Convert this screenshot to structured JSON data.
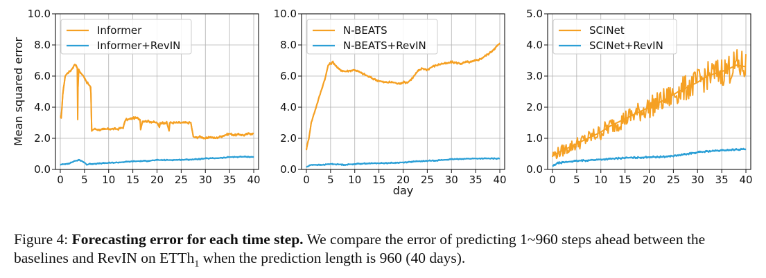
{
  "chart_data": [
    {
      "type": "line",
      "title": "",
      "xlabel": "",
      "ylabel": "Mean squared error",
      "xlim": [
        -1,
        41
      ],
      "ylim": [
        0,
        10
      ],
      "x_ticks": [
        0,
        5,
        10,
        15,
        20,
        25,
        30,
        35,
        40
      ],
      "y_ticks": [
        "0.0",
        "2.0",
        "4.0",
        "6.0",
        "8.0",
        "10.0"
      ],
      "grid": true,
      "legend_position": "top-left",
      "series": [
        {
          "name": "Informer",
          "color": "#f5a023",
          "x": [
            0,
            0.2,
            0.5,
            1.0,
            1.5,
            2.0,
            2.5,
            3.0,
            3.3,
            3.5,
            3.6,
            3.7,
            3.8,
            4.0,
            4.5,
            5.0,
            5.5,
            6.0,
            6.3,
            6.5,
            7.0,
            8.0,
            10.0,
            12.0,
            13.0,
            13.5,
            14.0,
            15.0,
            16.0,
            16.5,
            16.6,
            17.0,
            18.0,
            20.0,
            20.5,
            20.6,
            22.0,
            22.5,
            22.6,
            25.0,
            26.0,
            27.0,
            27.5,
            28.0,
            29.0,
            30.0,
            30.5,
            31.0,
            32.0,
            33.0,
            34.0,
            35.0,
            36.0,
            37.0,
            38.0,
            39.0,
            40.0
          ],
          "y": [
            3.4,
            3.3,
            4.8,
            6.0,
            6.2,
            6.3,
            6.5,
            6.75,
            6.7,
            6.5,
            3.2,
            6.45,
            6.4,
            6.3,
            6.1,
            5.9,
            5.6,
            5.4,
            5.3,
            2.5,
            2.6,
            2.55,
            2.6,
            2.6,
            2.7,
            3.2,
            3.2,
            3.3,
            3.3,
            3.2,
            2.55,
            3.1,
            3.1,
            3.0,
            2.7,
            3.0,
            3.0,
            2.5,
            3.0,
            3.0,
            3.0,
            3.0,
            2.1,
            2.05,
            2.1,
            2.0,
            2.0,
            2.1,
            2.0,
            2.1,
            2.2,
            2.3,
            2.2,
            2.25,
            2.2,
            2.3,
            2.3
          ]
        },
        {
          "name": "Informer+RevIN",
          "color": "#2b9fd6",
          "x": [
            0,
            1,
            2,
            3,
            4,
            5,
            5.5,
            6,
            8,
            10,
            12,
            15,
            18,
            20,
            22,
            25,
            28,
            30,
            32,
            34,
            35,
            36,
            38,
            40
          ],
          "y": [
            0.3,
            0.35,
            0.4,
            0.55,
            0.6,
            0.45,
            0.3,
            0.35,
            0.38,
            0.42,
            0.45,
            0.52,
            0.55,
            0.6,
            0.6,
            0.62,
            0.65,
            0.7,
            0.72,
            0.75,
            0.8,
            0.8,
            0.82,
            0.8
          ]
        }
      ]
    },
    {
      "type": "line",
      "title": "",
      "xlabel": "day",
      "ylabel": "",
      "xlim": [
        -1,
        41
      ],
      "ylim": [
        0,
        10
      ],
      "x_ticks": [
        0,
        5,
        10,
        15,
        20,
        25,
        30,
        35,
        40
      ],
      "y_ticks": [
        "0.0",
        "2.0",
        "4.0",
        "6.0",
        "8.0",
        "10.0"
      ],
      "grid": true,
      "legend_position": "top-left",
      "series": [
        {
          "name": "N-BEATS",
          "color": "#f5a023",
          "x": [
            0,
            0.5,
            1,
            2,
            3,
            4,
            4.5,
            5,
            5.5,
            6,
            6.5,
            7,
            8,
            10,
            12,
            14,
            15,
            16,
            18,
            19,
            20,
            21,
            22,
            23,
            24,
            25,
            26,
            27,
            28,
            29,
            30,
            31,
            32,
            33,
            34,
            35,
            36,
            37,
            38,
            39,
            40
          ],
          "y": [
            1.3,
            2.0,
            3.0,
            4.0,
            5.0,
            6.0,
            6.7,
            6.8,
            6.9,
            6.7,
            6.5,
            6.4,
            6.3,
            6.4,
            6.1,
            5.8,
            5.7,
            5.6,
            5.6,
            5.5,
            5.6,
            5.6,
            5.9,
            6.3,
            6.5,
            6.4,
            6.6,
            6.7,
            6.8,
            6.8,
            6.9,
            6.85,
            6.8,
            6.9,
            6.9,
            7.0,
            7.1,
            7.3,
            7.5,
            7.8,
            8.1
          ]
        },
        {
          "name": "N-BEATS+RevIN",
          "color": "#2b9fd6",
          "x": [
            0,
            1,
            2,
            3,
            5,
            8,
            10,
            12,
            15,
            18,
            20,
            22,
            25,
            28,
            30,
            32,
            35,
            38,
            40
          ],
          "y": [
            0.15,
            0.3,
            0.3,
            0.28,
            0.35,
            0.3,
            0.35,
            0.38,
            0.4,
            0.42,
            0.45,
            0.5,
            0.55,
            0.6,
            0.65,
            0.68,
            0.7,
            0.7,
            0.7
          ]
        }
      ]
    },
    {
      "type": "line",
      "title": "",
      "xlabel": "",
      "ylabel": "",
      "xlim": [
        -1,
        41
      ],
      "ylim": [
        0,
        5
      ],
      "x_ticks": [
        0,
        5,
        10,
        15,
        20,
        25,
        30,
        35,
        40
      ],
      "y_ticks": [
        "0.0",
        "1.0",
        "2.0",
        "3.0",
        "4.0",
        "5.0"
      ],
      "grid": true,
      "legend_position": "top-left",
      "series": [
        {
          "name": "SCINet",
          "color": "#f5a023",
          "x": [
            0,
            2,
            4,
            6,
            8,
            10,
            12,
            14,
            16,
            18,
            20,
            22,
            24,
            26,
            28,
            30,
            32,
            34,
            36,
            38,
            40
          ],
          "y": [
            0.45,
            0.6,
            0.75,
            0.9,
            1.05,
            1.2,
            1.4,
            1.55,
            1.7,
            1.85,
            2.0,
            2.15,
            2.3,
            2.5,
            2.65,
            2.8,
            3.0,
            3.1,
            3.2,
            3.35,
            3.3
          ]
        },
        {
          "name": "SCINet+RevIN",
          "color": "#2b9fd6",
          "x": [
            0,
            1,
            2,
            4,
            6,
            8,
            10,
            12,
            15,
            18,
            20,
            22,
            24,
            26,
            28,
            30,
            32,
            34,
            36,
            38,
            40
          ],
          "y": [
            0.1,
            0.2,
            0.22,
            0.26,
            0.28,
            0.3,
            0.32,
            0.34,
            0.37,
            0.38,
            0.4,
            0.4,
            0.42,
            0.45,
            0.5,
            0.55,
            0.58,
            0.6,
            0.62,
            0.64,
            0.65
          ]
        }
      ]
    }
  ],
  "caption": {
    "figure_label": "Figure 4:",
    "bold_title": "Forecasting error for each time step.",
    "text_before_tilde": "We compare the error of predicting 1",
    "tilde": "~",
    "text_after_tilde": "960 steps ahead between the baselines and RevIN on ETTh",
    "subscript": "1",
    "text_end": " when the prediction length is 960 (40 days)."
  }
}
